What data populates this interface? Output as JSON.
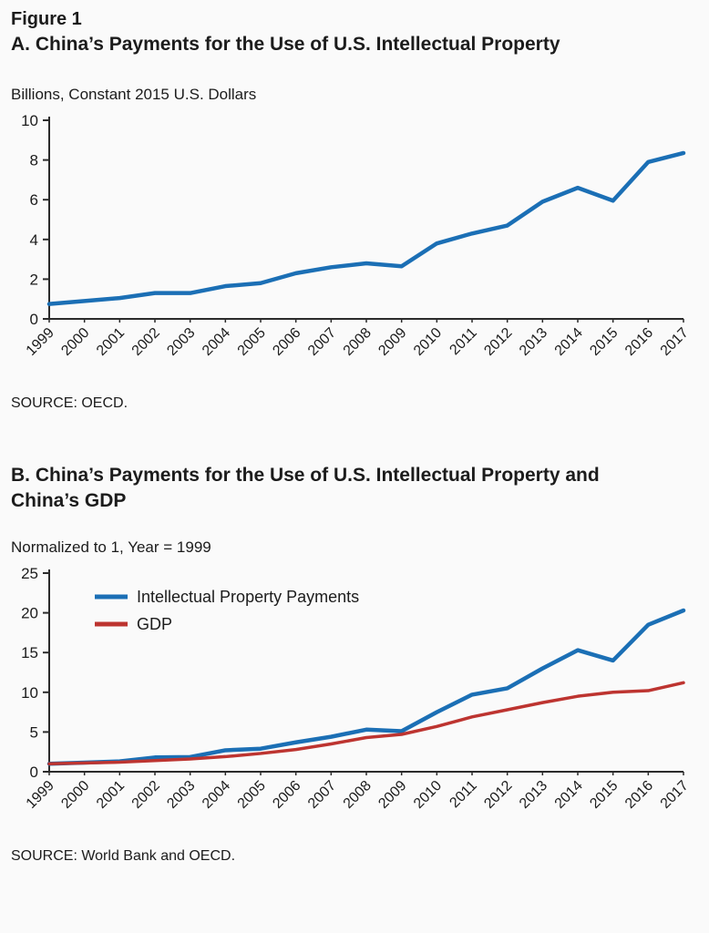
{
  "figure_label": "Figure 1",
  "panels": [
    {
      "title": "A. China’s Payments for the Use of U.S. Intellectual Property",
      "units_label": "Billions, Constant 2015 U.S. Dollars",
      "source": "SOURCE: OECD."
    },
    {
      "title": "B. China’s Payments for the Use of U.S. Intellectual Property and China’s GDP",
      "units_label": "Normalized to 1, Year = 1999",
      "source": "SOURCE: World Bank and OECD."
    }
  ],
  "colors": {
    "ip_payments": "#1b6fb5",
    "gdp": "#bd3430",
    "axis": "#2b2b2b",
    "text": "#1c1c1c"
  },
  "chart_data": [
    {
      "type": "line",
      "title": "A. China’s Payments for the Use of U.S. Intellectual Property",
      "ylabel": "Billions, Constant 2015 U.S. Dollars",
      "xlabel": "",
      "categories": [
        "1999",
        "2000",
        "2001",
        "2002",
        "2003",
        "2004",
        "2005",
        "2006",
        "2007",
        "2008",
        "2009",
        "2010",
        "2011",
        "2012",
        "2013",
        "2014",
        "2015",
        "2016",
        "2017"
      ],
      "series": [
        {
          "name": "Intellectual Property Payments",
          "color": "#1b6fb5",
          "width": 4.5,
          "values": [
            0.75,
            0.9,
            1.05,
            1.3,
            1.3,
            1.65,
            1.8,
            2.3,
            2.6,
            2.8,
            2.65,
            3.8,
            4.3,
            4.7,
            5.9,
            6.6,
            5.95,
            7.9,
            8.35
          ]
        }
      ],
      "ylim": [
        0,
        10
      ],
      "yticks": [
        0,
        2,
        4,
        6,
        8,
        10
      ],
      "grid": false,
      "legend": false
    },
    {
      "type": "line",
      "title": "B. China’s Payments for the Use of U.S. Intellectual Property and China’s GDP",
      "ylabel": "Normalized to 1, Year = 1999",
      "xlabel": "",
      "categories": [
        "1999",
        "2000",
        "2001",
        "2002",
        "2003",
        "2004",
        "2005",
        "2006",
        "2007",
        "2008",
        "2009",
        "2010",
        "2011",
        "2012",
        "2013",
        "2014",
        "2015",
        "2016",
        "2017"
      ],
      "series": [
        {
          "name": "Intellectual Property Payments",
          "color": "#1b6fb5",
          "width": 4.5,
          "values": [
            1.0,
            1.15,
            1.3,
            1.8,
            1.85,
            2.7,
            2.9,
            3.7,
            4.4,
            5.3,
            5.1,
            7.5,
            9.7,
            10.5,
            13.0,
            15.3,
            14.0,
            18.5,
            20.3
          ]
        },
        {
          "name": "GDP",
          "color": "#bd3430",
          "width": 3.5,
          "values": [
            1.0,
            1.1,
            1.2,
            1.4,
            1.6,
            1.9,
            2.3,
            2.8,
            3.5,
            4.3,
            4.7,
            5.7,
            6.9,
            7.8,
            8.7,
            9.5,
            10.0,
            10.2,
            11.2
          ]
        }
      ],
      "ylim": [
        0,
        25
      ],
      "yticks": [
        0,
        5,
        10,
        15,
        20,
        25
      ],
      "grid": false,
      "legend": true,
      "legend_position": "top-left"
    }
  ]
}
